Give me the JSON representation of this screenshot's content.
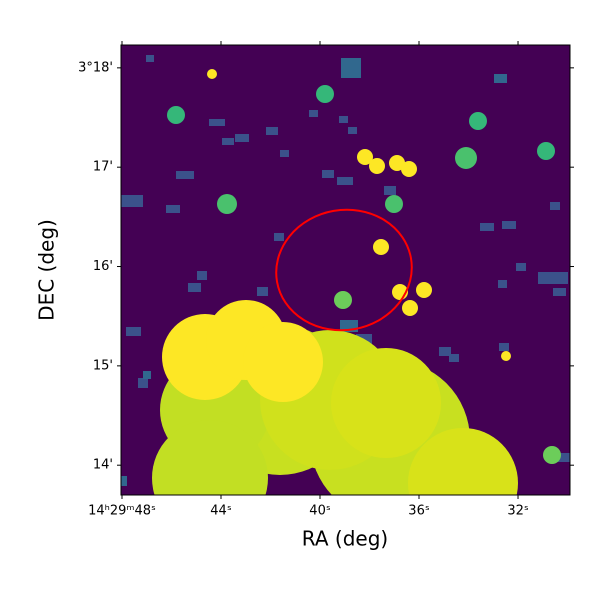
{
  "chart_data": {
    "type": "image",
    "x_label": "RA (deg)",
    "y_label": "DEC (deg)",
    "xlim": [
      48.04,
      29.9
    ],
    "xticks": [
      {
        "value": 48,
        "label": "14ʰ29ᵐ48ˢ"
      },
      {
        "value": 44,
        "label": "44ˢ"
      },
      {
        "value": 40,
        "label": "40ˢ"
      },
      {
        "value": 36,
        "label": "36ˢ"
      },
      {
        "value": 32,
        "label": "32ˢ"
      }
    ],
    "ylim": [
      13.7,
      18.23
    ],
    "yticks": [
      {
        "value": 14,
        "label": "14'"
      },
      {
        "value": 15,
        "label": "15'"
      },
      {
        "value": 16,
        "label": "16'"
      },
      {
        "value": 17,
        "label": "17'"
      },
      {
        "value": 18,
        "label": "3°18'"
      }
    ]
  }
}
